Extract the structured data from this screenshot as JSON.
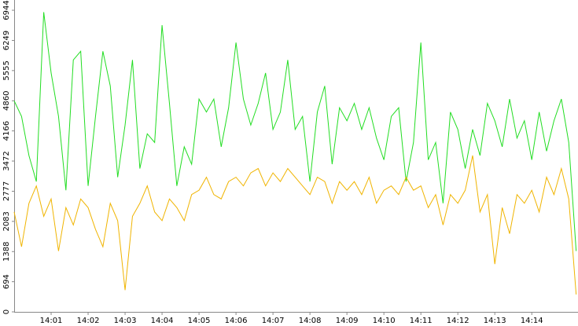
{
  "chart_data": {
    "type": "line",
    "x": [
      0,
      0.2,
      0.4,
      0.6,
      0.8,
      1,
      1.2,
      1.4,
      1.6,
      1.8,
      2,
      2.2,
      2.4,
      2.6,
      2.8,
      3,
      3.2,
      3.4,
      3.6,
      3.8,
      4,
      4.2,
      4.4,
      4.6,
      4.8,
      5,
      5.2,
      5.4,
      5.6,
      5.8,
      6,
      6.2,
      6.4,
      6.6,
      6.8,
      7,
      7.2,
      7.4,
      7.6,
      7.8,
      8,
      8.2,
      8.4,
      8.6,
      8.8,
      9,
      9.2,
      9.4,
      9.6,
      9.8,
      10,
      10.2,
      10.4,
      10.6,
      10.8,
      11,
      11.2,
      11.4,
      11.6,
      11.8,
      12,
      12.2,
      12.4,
      12.6,
      12.8,
      13,
      13.2,
      13.4,
      13.6,
      13.8,
      14,
      14.2,
      14.4,
      14.6,
      14.8,
      15,
      15.2
    ],
    "series": [
      {
        "color": "#22dd22",
        "values": [
          4860,
          4500,
          3600,
          3000,
          6900,
          5500,
          4500,
          2800,
          5800,
          6000,
          2900,
          4500,
          6000,
          5200,
          3100,
          4300,
          5800,
          3300,
          4100,
          3900,
          6600,
          4800,
          2900,
          3800,
          3400,
          4900,
          4600,
          4900,
          3800,
          4700,
          6200,
          4900,
          4300,
          4800,
          5500,
          4200,
          4600,
          5800,
          4200,
          4500,
          3000,
          4600,
          5200,
          3400,
          4700,
          4400,
          4800,
          4200,
          4700,
          4000,
          3500,
          4500,
          4700,
          3000,
          3900,
          6200,
          3500,
          3900,
          2500,
          4600,
          4200,
          3300,
          4200,
          3600,
          4800,
          4400,
          3800,
          4900,
          4000,
          4400,
          3500,
          4600,
          3700,
          4400,
          4900,
          3900,
          1400
        ]
      },
      {
        "color": "#f0b400",
        "values": [
          2300,
          1500,
          2500,
          2900,
          2200,
          2600,
          1400,
          2400,
          2000,
          2600,
          2400,
          1900,
          1500,
          2500,
          2100,
          500,
          2200,
          2500,
          2900,
          2300,
          2100,
          2600,
          2400,
          2100,
          2700,
          2800,
          3100,
          2700,
          2600,
          3000,
          3100,
          2900,
          3200,
          3300,
          2900,
          3200,
          3000,
          3300,
          3100,
          2900,
          2700,
          3100,
          3000,
          2500,
          3000,
          2800,
          3000,
          2700,
          3100,
          2500,
          2800,
          2900,
          2700,
          3100,
          2800,
          2900,
          2400,
          2700,
          2000,
          2700,
          2500,
          2800,
          3600,
          2300,
          2700,
          1100,
          2400,
          1800,
          2700,
          2500,
          2800,
          2300,
          3100,
          2700,
          3300,
          2600,
          400
        ]
      }
    ],
    "xlim": [
      0,
      15.25
    ],
    "xticks": [
      {
        "value": 1,
        "label": "14:01"
      },
      {
        "value": 2,
        "label": "14:02"
      },
      {
        "value": 3,
        "label": "14:03"
      },
      {
        "value": 4,
        "label": "14:04"
      },
      {
        "value": 5,
        "label": "14:05"
      },
      {
        "value": 6,
        "label": "14:06"
      },
      {
        "value": 7,
        "label": "14:07"
      },
      {
        "value": 8,
        "label": "14:08"
      },
      {
        "value": 9,
        "label": "14:09"
      },
      {
        "value": 10,
        "label": "14:10"
      },
      {
        "value": 11,
        "label": "14:11"
      },
      {
        "value": 12,
        "label": "14:12"
      },
      {
        "value": 13,
        "label": "14:13"
      },
      {
        "value": 14,
        "label": "14:14"
      }
    ],
    "ylim": [
      0,
      7180
    ],
    "yticks": [
      0,
      694,
      1388,
      2083,
      2777,
      3472,
      4166,
      4860,
      5555,
      6249,
      6944
    ]
  }
}
